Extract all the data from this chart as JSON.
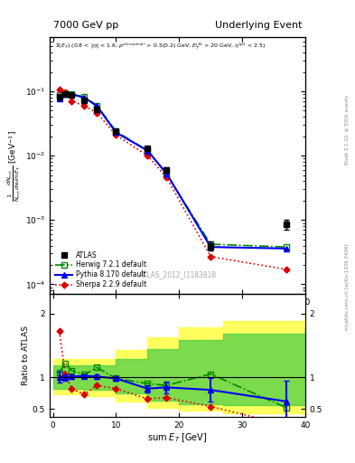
{
  "title_left": "7000 GeV pp",
  "title_right": "Underlying Event",
  "watermark": "ATLAS_2012_I1183818",
  "right_label": "mcplots.cern.ch [arXiv:1306.3436]",
  "right_label2": "Rivet 3.1.10, ≥ 500k events",
  "atlas_x": [
    1,
    2,
    3,
    5,
    7,
    10,
    15,
    18,
    25,
    37
  ],
  "atlas_y": [
    0.082,
    0.092,
    0.089,
    0.073,
    0.052,
    0.024,
    0.013,
    0.006,
    0.0004,
    0.00085
  ],
  "atlas_yerr": [
    0.006,
    0.006,
    0.005,
    0.004,
    0.003,
    0.0015,
    0.001,
    0.0005,
    6e-05,
    0.00015
  ],
  "herwig_x": [
    1,
    2,
    3,
    5,
    7,
    10,
    15,
    18,
    25,
    37
  ],
  "herwig_y": [
    0.088,
    0.093,
    0.09,
    0.082,
    0.06,
    0.024,
    0.012,
    0.0052,
    0.00042,
    0.00038
  ],
  "pythia_x": [
    1,
    2,
    3,
    5,
    7,
    10,
    15,
    18,
    25,
    37
  ],
  "pythia_y": [
    0.078,
    0.092,
    0.09,
    0.08,
    0.059,
    0.023,
    0.012,
    0.0053,
    0.00038,
    0.00036
  ],
  "sherpa_x": [
    1,
    2,
    3,
    5,
    7,
    10,
    15,
    18,
    25,
    37
  ],
  "sherpa_y": [
    0.107,
    0.096,
    0.07,
    0.06,
    0.046,
    0.021,
    0.01,
    0.0046,
    0.00027,
    0.00017
  ],
  "ratio_herwig_x": [
    1,
    2,
    3,
    5,
    7,
    10,
    15,
    18,
    25,
    37
  ],
  "ratio_herwig_y": [
    1.07,
    1.22,
    1.1,
    1.04,
    1.15,
    0.98,
    0.9,
    0.87,
    1.05,
    0.52
  ],
  "ratio_pythia_x": [
    1,
    2,
    3,
    5,
    7,
    10,
    15,
    18,
    25,
    37
  ],
  "ratio_pythia_y": [
    1.0,
    1.0,
    1.01,
    1.02,
    1.01,
    0.98,
    0.82,
    0.84,
    0.8,
    0.62
  ],
  "ratio_pythia_yerr": [
    0.08,
    0.05,
    0.04,
    0.03,
    0.04,
    0.04,
    0.06,
    0.09,
    0.18,
    0.32
  ],
  "ratio_sherpa_x": [
    1,
    2,
    3,
    5,
    7,
    10,
    15,
    18,
    25,
    37
  ],
  "ratio_sherpa_y": [
    1.72,
    1.04,
    0.82,
    0.73,
    0.87,
    0.82,
    0.66,
    0.68,
    0.54,
    0.25
  ],
  "band_yellow_x": [
    0,
    5,
    10,
    15,
    20,
    27,
    40
  ],
  "band_yellow_lo": [
    0.73,
    0.7,
    0.62,
    0.52,
    0.47,
    0.43,
    0.38
  ],
  "band_yellow_hi": [
    1.28,
    1.28,
    1.42,
    1.62,
    1.78,
    1.88,
    2.05
  ],
  "band_green_x": [
    0,
    5,
    10,
    15,
    20,
    27,
    40
  ],
  "band_green_lo": [
    0.82,
    0.8,
    0.74,
    0.63,
    0.58,
    0.56,
    0.53
  ],
  "band_green_hi": [
    1.18,
    1.18,
    1.28,
    1.44,
    1.58,
    1.68,
    1.78
  ],
  "color_atlas": "#000000",
  "color_herwig": "#008800",
  "color_pythia": "#0000ee",
  "color_sherpa": "#dd0000",
  "color_yellow": "#ffff44",
  "color_green": "#44cc44",
  "xlim": [
    -0.5,
    40
  ],
  "ylim_main": [
    7e-05,
    0.7
  ],
  "ylim_ratio": [
    0.38,
    2.3
  ]
}
